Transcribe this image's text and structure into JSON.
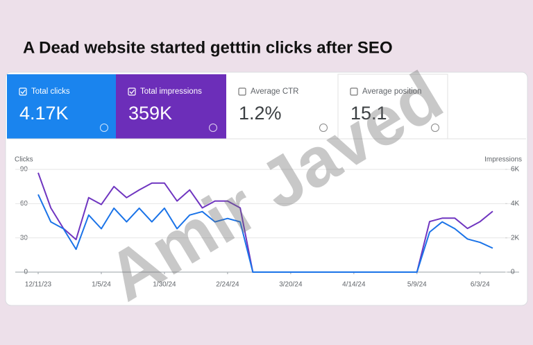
{
  "chart_data": {
    "type": "line",
    "title": "A Dead website started getttin clicks after SEO",
    "metrics": [
      {
        "label": "Total clicks",
        "value": "4.17K"
      },
      {
        "label": "Total impressions",
        "value": "359K"
      },
      {
        "label": "Average CTR",
        "value": "1.2%"
      },
      {
        "label": "Average position",
        "value": "15.1"
      }
    ],
    "watermark": "Amir Javed",
    "y_label": "Clicks",
    "y2_label": "Impressions",
    "x": [
      "12/11/23",
      "12/16/23",
      "12/21/23",
      "12/26/23",
      "12/31/23",
      "1/5/24",
      "1/10/24",
      "1/15/24",
      "1/20/24",
      "1/25/24",
      "1/30/24",
      "2/4/24",
      "2/9/24",
      "2/14/24",
      "2/19/24",
      "2/24/24",
      "2/29/24",
      "3/5/24",
      "3/10/24",
      "3/15/24",
      "3/20/24",
      "3/25/24",
      "3/30/24",
      "4/4/24",
      "4/9/24",
      "4/14/24",
      "4/19/24",
      "4/24/24",
      "4/29/24",
      "5/4/24",
      "5/9/24",
      "5/14/24",
      "5/19/24",
      "5/24/24",
      "5/29/24",
      "6/3/24",
      "6/8/24"
    ],
    "xticks": [
      "12/11/23",
      "1/5/24",
      "1/30/24",
      "2/24/24",
      "3/20/24",
      "4/14/24",
      "5/9/24",
      "6/3/24"
    ],
    "series": [
      {
        "name": "Total clicks",
        "color": "#1a73e8",
        "axis": "y",
        "values": [
          68,
          44,
          38,
          20,
          50,
          38,
          56,
          44,
          56,
          44,
          56,
          38,
          50,
          53,
          44,
          47,
          44,
          0,
          0,
          0,
          0,
          0,
          0,
          0,
          0,
          0,
          0,
          0,
          0,
          0,
          0,
          35,
          44,
          38,
          29,
          26,
          21
        ]
      },
      {
        "name": "Total impressions",
        "color": "#6f35c0",
        "axis": "y2",
        "values": [
          5800,
          3750,
          2550,
          1900,
          4350,
          3950,
          5000,
          4350,
          4800,
          5200,
          5200,
          4150,
          4800,
          3750,
          4150,
          4150,
          3750,
          0,
          0,
          0,
          0,
          0,
          0,
          0,
          0,
          0,
          0,
          0,
          0,
          0,
          0,
          2950,
          3150,
          3150,
          2550,
          2950,
          3550
        ]
      }
    ],
    "ylim": [
      0,
      90
    ],
    "yticks": [
      0,
      30,
      60,
      90
    ],
    "y2lim": [
      0,
      6000
    ],
    "y2ticks": [
      0,
      {
        "value": 2000,
        "label": "2K"
      },
      {
        "value": 4000,
        "label": "4K"
      },
      {
        "value": 6000,
        "label": "6K"
      }
    ],
    "grid": true
  }
}
